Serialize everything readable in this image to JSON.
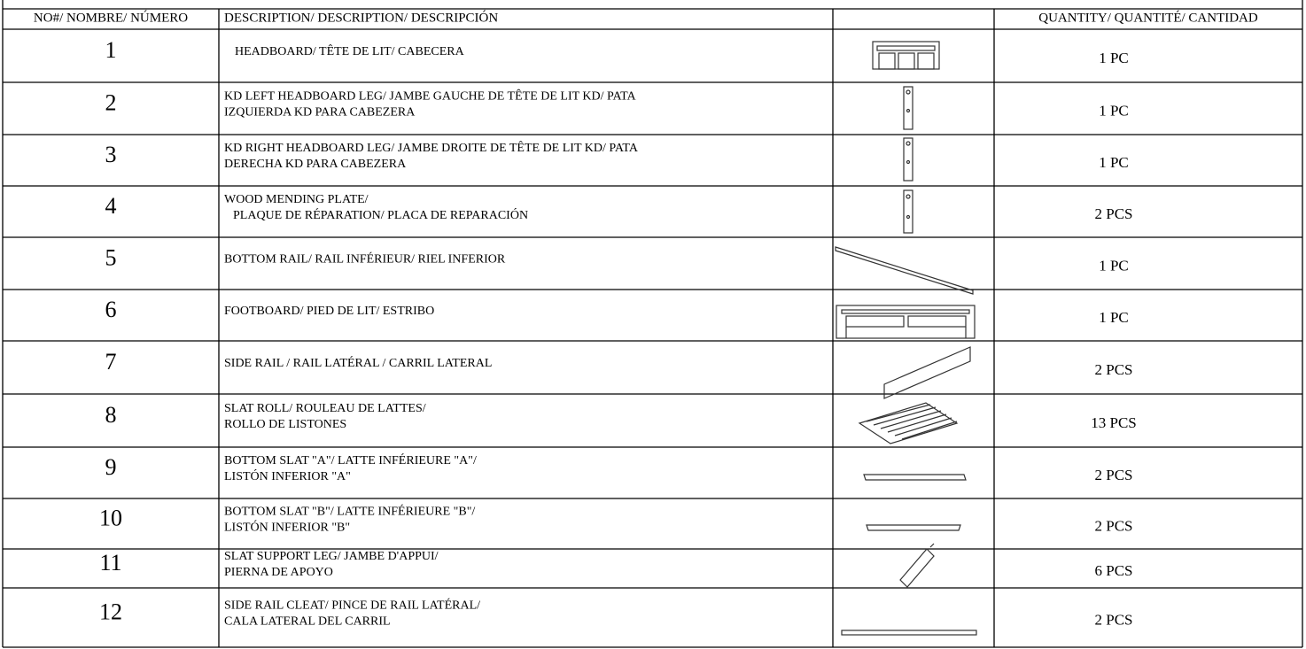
{
  "table": {
    "header": {
      "number": "NO#/ NOMBRE/ NÚMERO",
      "description": "DESCRIPTION/ DESCRIPTION/ DESCRIPCIÓN",
      "quantity": "QUANTITY/ QUANTITÉ/ CANTIDAD"
    },
    "rows": [
      {
        "number": "1",
        "description": [
          "HEADBOARD/ TÊTE DE LIT/ CABECERA"
        ],
        "quantity": "1 PC"
      },
      {
        "number": "2",
        "description": [
          "KD LEFT HEADBOARD LEG/ JAMBE GAUCHE DE TÊTE DE LIT KD/ PATA",
          "IZQUIERDA KD PARA CABEZERA"
        ],
        "quantity": "1 PC"
      },
      {
        "number": "3",
        "description": [
          "KD RIGHT HEADBOARD LEG/ JAMBE DROITE DE TÊTE DE LIT KD/ PATA",
          "DERECHA KD PARA CABEZERA"
        ],
        "quantity": "1 PC"
      },
      {
        "number": "4",
        "description": [
          "WOOD MENDING PLATE/",
          "PLAQUE DE RÉPARATION/ PLACA DE REPARACIÓN"
        ],
        "quantity": "2 PCS"
      },
      {
        "number": "5",
        "description": [
          "BOTTOM RAIL/ RAIL INFÉRIEUR/ RIEL INFERIOR"
        ],
        "quantity": "1 PC"
      },
      {
        "number": "6",
        "description": [
          "FOOTBOARD/ PIED DE LIT/ ESTRIBO"
        ],
        "quantity": "1 PC"
      },
      {
        "number": "7",
        "description": [
          "SIDE RAIL / RAIL LATÉRAL / CARRIL LATERAL"
        ],
        "quantity": "2 PCS"
      },
      {
        "number": "8",
        "description": [
          "SLAT ROLL/ ROULEAU DE LATTES/",
          "ROLLO DE LISTONES"
        ],
        "quantity": "13 PCS"
      },
      {
        "number": "9",
        "description": [
          "BOTTOM SLAT \"A\"/ LATTE INFÉRIEURE \"A\"/",
          "LISTÓN INFERIOR \"A\""
        ],
        "quantity": "2 PCS"
      },
      {
        "number": "10",
        "description": [
          "BOTTOM SLAT \"B\"/ LATTE INFÉRIEURE \"B\"/",
          "LISTÓN INFERIOR \"B\""
        ],
        "quantity": "2 PCS"
      },
      {
        "number": "11",
        "description": [
          "SLAT SUPPORT LEG/ JAMBE D'APPUI/",
          "PIERNA DE APOYO"
        ],
        "quantity": "6 PCS"
      },
      {
        "number": "12",
        "description": [
          "SIDE RAIL CLEAT/ PINCE DE RAIL LATÉRAL/",
          "CALA LATERAL DEL CARRIL"
        ],
        "quantity": "2 PCS"
      }
    ]
  }
}
